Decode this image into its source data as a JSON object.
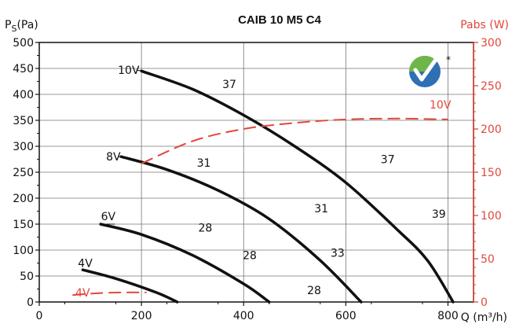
{
  "colors": {
    "curve": "#111111",
    "power": "#e2473a",
    "logo_green": "#6fb64a",
    "logo_blue": "#2f6fb4"
  },
  "chart_data": {
    "type": "line",
    "title": "CAIB 10 M5 C4",
    "xlabel": "Q (m³/h)",
    "ylabel_main": "P",
    "ylabel_sub": "S",
    "ylabel_unit": "(Pa)",
    "y2label": "Pabs (W)",
    "xlim": [
      0,
      850
    ],
    "ylim": [
      0,
      500
    ],
    "y2lim": [
      0,
      300
    ],
    "x_ticks": [
      "0",
      "200",
      "400",
      "600",
      "800"
    ],
    "y_ticks": [
      "0",
      "50",
      "100",
      "150",
      "200",
      "250",
      "300",
      "350",
      "400",
      "450",
      "500"
    ],
    "y2_ticks": [
      "0",
      "50",
      "100",
      "150",
      "200",
      "250",
      "300"
    ],
    "grid": true,
    "pressure_series": [
      {
        "name": "10V",
        "x": [
          200,
          300,
          400,
          500,
          600,
          700,
          760,
          810
        ],
        "y": [
          445,
          410,
          360,
          300,
          230,
          140,
          80,
          0
        ]
      },
      {
        "name": "8V",
        "x": [
          160,
          250,
          350,
          450,
          550,
          630
        ],
        "y": [
          280,
          255,
          215,
          160,
          80,
          0
        ]
      },
      {
        "name": "6V",
        "x": [
          120,
          200,
          300,
          400,
          450
        ],
        "y": [
          150,
          130,
          90,
          35,
          0
        ]
      },
      {
        "name": "4V",
        "x": [
          85,
          150,
          230,
          270
        ],
        "y": [
          62,
          45,
          18,
          0
        ]
      }
    ],
    "power_series": [
      {
        "name": "10V",
        "x": [
          200,
          300,
          400,
          500,
          600,
          700,
          800
        ],
        "y": [
          160,
          186,
          200,
          207,
          211,
          212,
          211
        ]
      },
      {
        "name": "4V",
        "x": [
          65,
          110,
          160,
          210
        ],
        "y": [
          8,
          10,
          11,
          11
        ]
      }
    ],
    "annotations": [
      {
        "text": "10V",
        "x": 175,
        "y": 447
      },
      {
        "text": "37",
        "x": 372,
        "y": 420
      },
      {
        "text": "37",
        "x": 682,
        "y": 275
      },
      {
        "text": "39",
        "x": 782,
        "y": 170
      },
      {
        "text": "8V",
        "x": 145,
        "y": 280
      },
      {
        "text": "31",
        "x": 322,
        "y": 268
      },
      {
        "text": "31",
        "x": 552,
        "y": 180
      },
      {
        "text": "6V",
        "x": 135,
        "y": 165
      },
      {
        "text": "28",
        "x": 325,
        "y": 143
      },
      {
        "text": "28",
        "x": 412,
        "y": 90
      },
      {
        "text": "33",
        "x": 584,
        "y": 95
      },
      {
        "text": "4V",
        "x": 90,
        "y": 75
      },
      {
        "text": "28",
        "x": 538,
        "y": 23
      }
    ],
    "power_annotations": [
      {
        "text": "10V",
        "x": 785,
        "y": 228
      },
      {
        "text": "4V",
        "x": 85,
        "y": 11
      }
    ]
  }
}
